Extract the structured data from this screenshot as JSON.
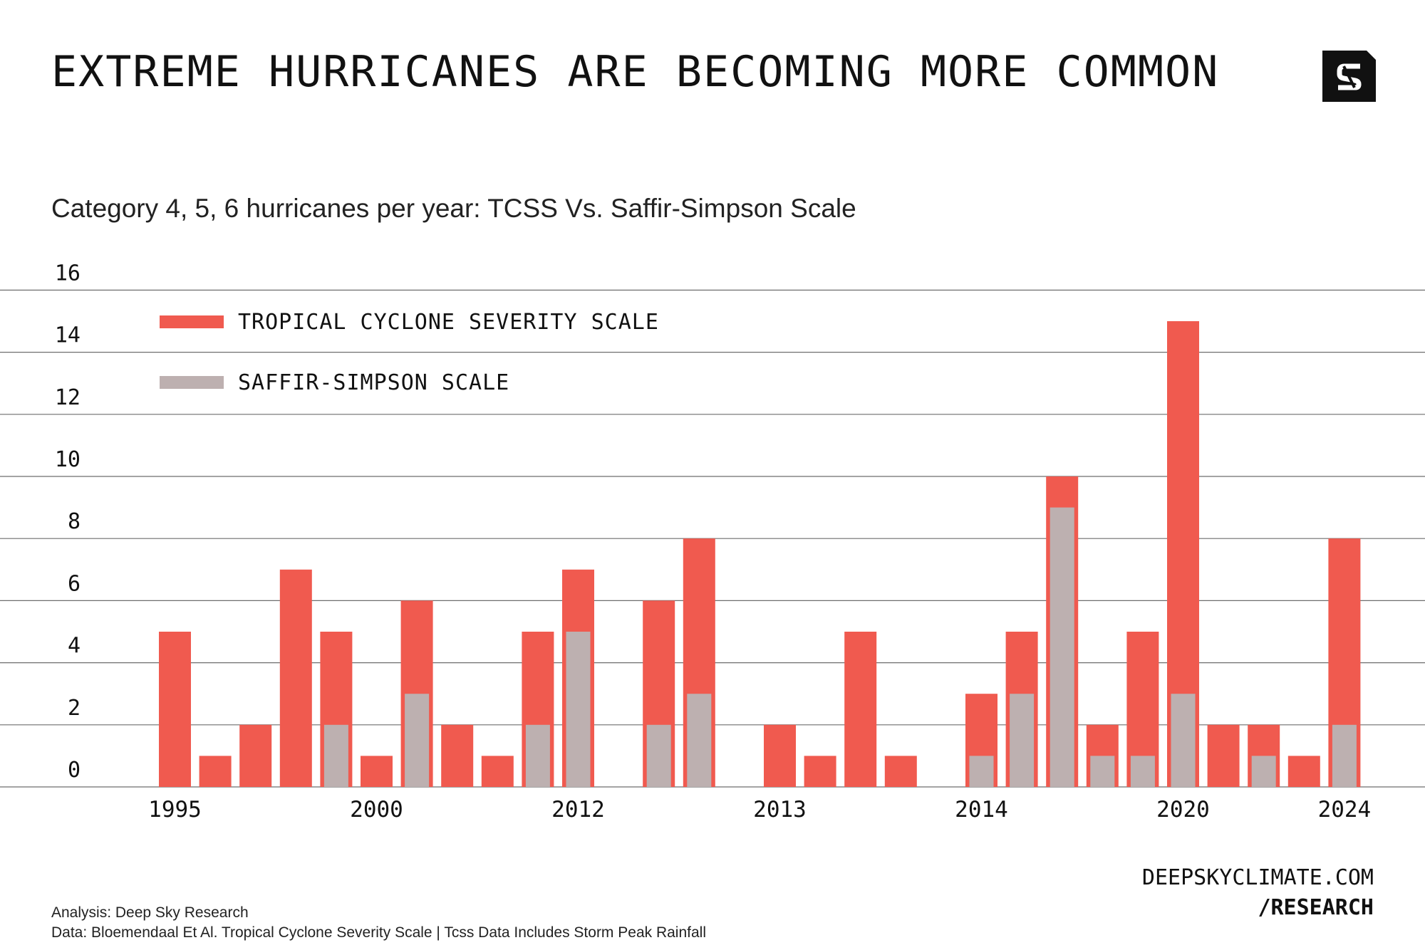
{
  "header": {
    "title": "EXTREME HURRICANES ARE BECOMING MORE COMMON",
    "logo_icon": "deep-sky-s-logo-icon",
    "subtitle": "Category 4, 5, 6 hurricanes per year: TCSS Vs. Saffir-Simpson Scale"
  },
  "colors": {
    "tcss": "#f05a4f",
    "saffir": "#bdb0b0",
    "grid": "#6e6e6e",
    "text": "#111111"
  },
  "chart_data": {
    "type": "bar",
    "title": "Category 4, 5, 6 hurricanes per year: TCSS Vs. Saffir-Simpson Scale",
    "xlabel": "",
    "ylabel": "",
    "ylim": [
      0,
      16
    ],
    "yticks": [
      "0",
      "2",
      "4",
      "6",
      "8",
      "10",
      "12",
      "14",
      "16"
    ],
    "grid": true,
    "legend_position": "top-left",
    "categories": [
      "1995",
      "",
      "",
      "",
      "",
      "2000",
      "",
      "",
      "",
      "",
      "2012",
      "",
      "",
      "",
      "",
      "2013",
      "",
      "",
      "",
      "",
      "2014",
      "",
      "",
      "",
      "",
      "2020",
      "",
      "",
      "",
      "2024"
    ],
    "x_tick_labels": [
      {
        "label": "1995",
        "index": 0
      },
      {
        "label": "2000",
        "index": 5
      },
      {
        "label": "2012",
        "index": 10
      },
      {
        "label": "2013",
        "index": 15
      },
      {
        "label": "2014",
        "index": 20
      },
      {
        "label": "2020",
        "index": 25
      },
      {
        "label": "2024",
        "index": 29
      }
    ],
    "series": [
      {
        "name": "TROPICAL CYCLONE SEVERITY SCALE",
        "values": [
          5,
          1,
          2,
          7,
          5,
          1,
          6,
          2,
          1,
          5,
          7,
          0,
          6,
          8,
          0,
          2,
          1,
          5,
          1,
          0,
          3,
          5,
          10,
          2,
          5,
          15,
          2,
          2,
          1,
          8
        ]
      },
      {
        "name": "SAFFIR-SIMPSON SCALE",
        "values": [
          0,
          0,
          0,
          0,
          2,
          0,
          3,
          0,
          0,
          2,
          5,
          0,
          2,
          3,
          0,
          0,
          0,
          0,
          0,
          0,
          1,
          3,
          9,
          1,
          1,
          3,
          0,
          1,
          0,
          2
        ]
      }
    ]
  },
  "footer": {
    "url_line1": "DEEPSKYCLIMATE.COM",
    "url_line2": "/RESEARCH",
    "analysis": "Analysis: Deep Sky Research",
    "data_source": "Data: Bloemendaal Et Al. Tropical Cyclone Severity Scale | Tcss Data Includes Storm Peak Rainfall"
  }
}
